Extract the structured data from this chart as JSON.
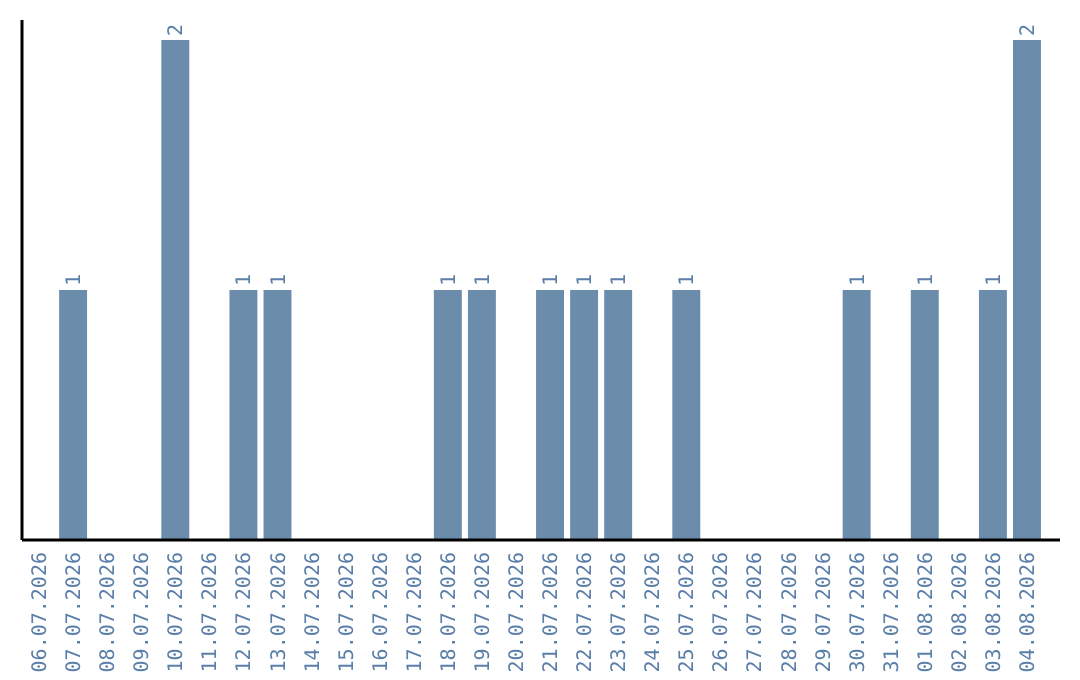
{
  "chart_data": {
    "type": "bar",
    "categories": [
      "06.07.2026",
      "07.07.2026",
      "08.07.2026",
      "09.07.2026",
      "10.07.2026",
      "11.07.2026",
      "12.07.2026",
      "13.07.2026",
      "14.07.2026",
      "15.07.2026",
      "16.07.2026",
      "17.07.2026",
      "18.07.2026",
      "19.07.2026",
      "20.07.2026",
      "21.07.2026",
      "22.07.2026",
      "23.07.2026",
      "24.07.2026",
      "25.07.2026",
      "26.07.2026",
      "27.07.2026",
      "28.07.2026",
      "29.07.2026",
      "30.07.2026",
      "31.07.2026",
      "01.08.2026",
      "02.08.2026",
      "03.08.2026",
      "04.08.2026"
    ],
    "values": [
      0,
      1,
      0,
      0,
      2,
      0,
      1,
      1,
      0,
      0,
      0,
      0,
      1,
      1,
      0,
      1,
      1,
      1,
      0,
      1,
      0,
      0,
      0,
      0,
      1,
      0,
      1,
      0,
      1,
      2
    ],
    "value_labels": [
      null,
      "1",
      null,
      null,
      "2",
      null,
      "1",
      "1",
      null,
      null,
      null,
      null,
      "1",
      "1",
      null,
      "1",
      "1",
      "1",
      null,
      "1",
      null,
      null,
      null,
      null,
      "1",
      null,
      "1",
      null,
      "1",
      "2"
    ],
    "color": "#6b8cab",
    "ylim": [
      0,
      2.08
    ],
    "tick_labels": "x"
  }
}
